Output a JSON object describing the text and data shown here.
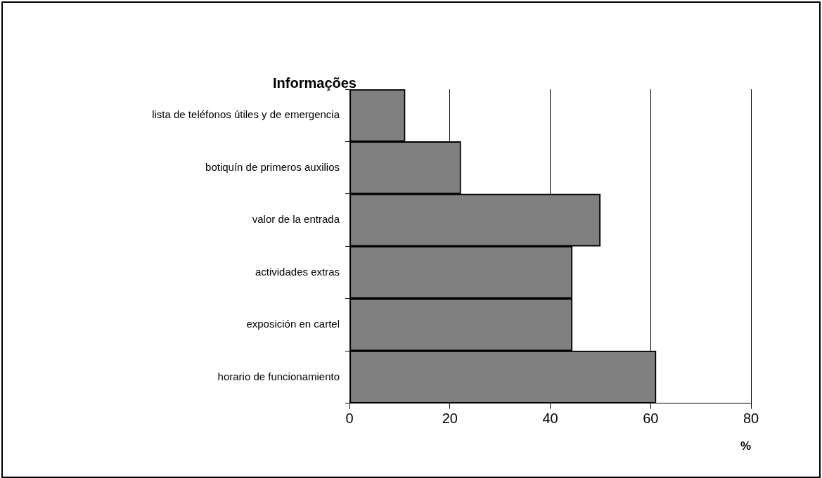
{
  "chart_data": {
    "type": "bar",
    "orientation": "horizontal",
    "title": "Informações",
    "xlabel": "%",
    "categories": [
      "lista de teléfonos útiles y de emergencia",
      "botiquín de primeros auxilios",
      "valor de la entrada",
      "actividades extras",
      "exposición en cartel",
      "horario de funcionamiento"
    ],
    "values": [
      11.1,
      22.2,
      50,
      44.4,
      44.4,
      61.1
    ],
    "color": "#808080",
    "xlim": [
      0,
      80
    ],
    "xticks": [
      0,
      20,
      40,
      60,
      80
    ],
    "grid": "x",
    "legend": false
  }
}
